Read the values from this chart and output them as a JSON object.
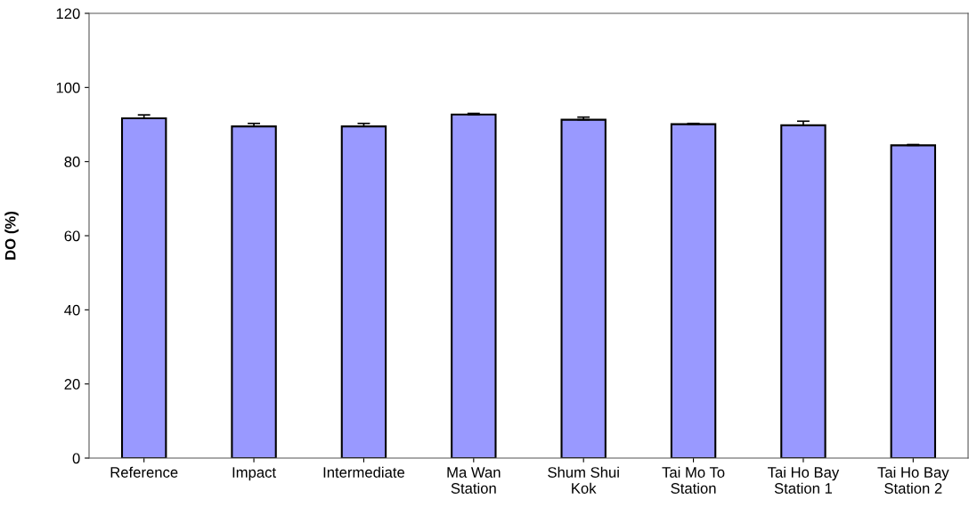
{
  "chart_data": {
    "type": "bar",
    "ylabel": "DO (%)",
    "categories": [
      "Reference",
      "Impact",
      "Intermediate",
      "Ma Wan\nStation",
      "Shum Shui\nKok",
      "Tai Mo To\nStation",
      "Tai Ho Bay\nStation 1",
      "Tai Ho Bay\nStation 2"
    ],
    "values": [
      91.7,
      89.5,
      89.5,
      92.7,
      91.3,
      90.1,
      89.8,
      84.4
    ],
    "errors": [
      [
        91.7,
        92.6
      ],
      [
        89.5,
        90.3
      ],
      [
        89.5,
        90.3
      ],
      [
        92.7,
        93.0
      ],
      [
        91.3,
        92.0
      ],
      [
        90.1,
        90.3
      ],
      [
        89.8,
        90.9
      ],
      [
        84.4,
        84.6
      ]
    ],
    "color": "#9999ff",
    "ylim": [
      0,
      120
    ],
    "yticks": [
      0,
      20,
      40,
      60,
      80,
      100,
      120
    ],
    "grid": false,
    "legend": false
  }
}
